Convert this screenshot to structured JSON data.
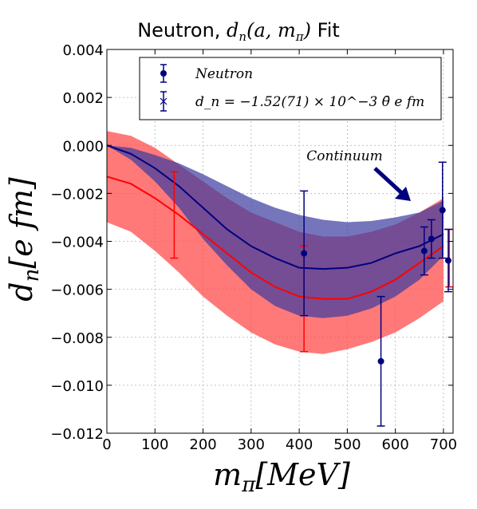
{
  "chart_data": {
    "type": "line",
    "title": {
      "prefix": "Neutron, ",
      "math": "d",
      "math_sub": "n",
      "math_args": "(a, m",
      "math_args_sub": "π",
      "suffix_math": ")",
      "suffix": " Fit"
    },
    "xlabel": {
      "main": "m",
      "sub": "π",
      "rest": "[MeV]"
    },
    "ylabel": {
      "main": "d",
      "sub": "n",
      "rest": "[e fm]"
    },
    "xlim": [
      0,
      720
    ],
    "ylim": [
      -0.012,
      0.004
    ],
    "x_ticks": [
      {
        "value": 0,
        "label": "0"
      },
      {
        "value": 100,
        "label": "100"
      },
      {
        "value": 200,
        "label": "200"
      },
      {
        "value": 300,
        "label": "300"
      },
      {
        "value": 400,
        "label": "400"
      },
      {
        "value": 500,
        "label": "500"
      },
      {
        "value": 600,
        "label": "600"
      },
      {
        "value": 700,
        "label": "700"
      }
    ],
    "y_ticks": [
      {
        "value": 0.004,
        "label": "0.004"
      },
      {
        "value": 0.002,
        "label": "0.002"
      },
      {
        "value": 0.0,
        "label": "0.000"
      },
      {
        "value": -0.002,
        "label": "−0.002"
      },
      {
        "value": -0.004,
        "label": "−0.004"
      },
      {
        "value": -0.006,
        "label": "−0.006"
      },
      {
        "value": -0.008,
        "label": "−0.008"
      },
      {
        "value": -0.01,
        "label": "−0.010"
      },
      {
        "value": -0.012,
        "label": "−0.012"
      }
    ],
    "grid": true,
    "legend_position": "top-right",
    "series": [
      {
        "name": "Neutron",
        "kind": "points",
        "color": "#00007f",
        "marker": "circle",
        "x": [
          410,
          570,
          660,
          675,
          698
        ],
        "y": [
          -0.0045,
          -0.009,
          -0.0044,
          -0.0039,
          -0.0027
        ],
        "err": [
          0.0026,
          0.0027,
          0.001,
          0.0008,
          0.002
        ]
      },
      {
        "name": "d_n = −1.52(71) × 10^−3 θ̄ e fm",
        "kind": "fit-band",
        "color": "#00007f",
        "band_color": "#3b3b9f",
        "x": [
          0,
          50,
          100,
          150,
          200,
          250,
          300,
          350,
          400,
          450,
          500,
          550,
          600,
          650,
          700
        ],
        "y": [
          0.0,
          -0.00035,
          -0.00095,
          -0.0017,
          -0.0026,
          -0.0035,
          -0.0042,
          -0.0047,
          -0.0051,
          -0.00515,
          -0.0051,
          -0.0049,
          -0.0045,
          -0.0042,
          -0.0037
        ],
        "upper": [
          0.0,
          -0.0001,
          -0.0004,
          -0.00075,
          -0.0012,
          -0.0017,
          -0.0022,
          -0.0026,
          -0.0029,
          -0.0031,
          -0.0032,
          -0.00315,
          -0.003,
          -0.0028,
          -0.0023
        ],
        "lower": [
          0.0,
          -0.0006,
          -0.0015,
          -0.0026,
          -0.0039,
          -0.005,
          -0.006,
          -0.0067,
          -0.0071,
          -0.0072,
          -0.0071,
          -0.0068,
          -0.0063,
          -0.0056,
          -0.0046
        ]
      },
      {
        "name": "Continuum",
        "kind": "fit-band",
        "color": "#ff0000",
        "band_color": "#ff4c4c",
        "x": [
          0,
          50,
          100,
          150,
          200,
          250,
          300,
          350,
          400,
          450,
          500,
          550,
          600,
          650,
          700
        ],
        "y": [
          -0.0013,
          -0.0016,
          -0.0022,
          -0.0029,
          -0.0037,
          -0.0045,
          -0.0053,
          -0.0059,
          -0.0063,
          -0.0064,
          -0.0064,
          -0.0061,
          -0.0056,
          -0.0049,
          -0.0042
        ],
        "upper": [
          0.0006,
          0.0004,
          -0.0001,
          -0.0008,
          -0.0015,
          -0.0022,
          -0.0028,
          -0.0032,
          -0.0036,
          -0.0038,
          -0.0038,
          -0.0036,
          -0.0033,
          -0.0028,
          -0.0022
        ],
        "lower": [
          -0.0032,
          -0.0036,
          -0.0044,
          -0.0053,
          -0.0063,
          -0.0071,
          -0.0078,
          -0.0083,
          -0.0086,
          -0.0087,
          -0.0085,
          -0.0082,
          -0.0078,
          -0.0072,
          -0.0065
        ]
      },
      {
        "name": "",
        "kind": "points-red",
        "color": "#ff0000",
        "x": [
          140,
          410,
          712
        ],
        "y": [
          -0.0029,
          -0.0064,
          -0.0047
        ],
        "err": [
          0.0018,
          0.0022,
          0.0012
        ]
      },
      {
        "name": "",
        "kind": "points-extra",
        "color": "#00007f",
        "x": [
          710
        ],
        "y": [
          -0.0048
        ],
        "err": [
          0.0013
        ]
      }
    ],
    "legend": [
      {
        "label": "Neutron",
        "style": "point"
      },
      {
        "label": "d_n = −1.52(71) × 10^−3 θ̄ e fm",
        "style": "x"
      }
    ],
    "annotation": {
      "text": "Continuum",
      "arrow_from": [
        600,
        -0.0006
      ],
      "arrow_to": [
        690,
        -0.0024
      ]
    }
  },
  "colors": {
    "blue_band": "#3b3b9f",
    "red_band": "#ff4c4c",
    "blue_line": "#00007f",
    "red_line": "#ff0000",
    "arrow": "#00007f"
  }
}
